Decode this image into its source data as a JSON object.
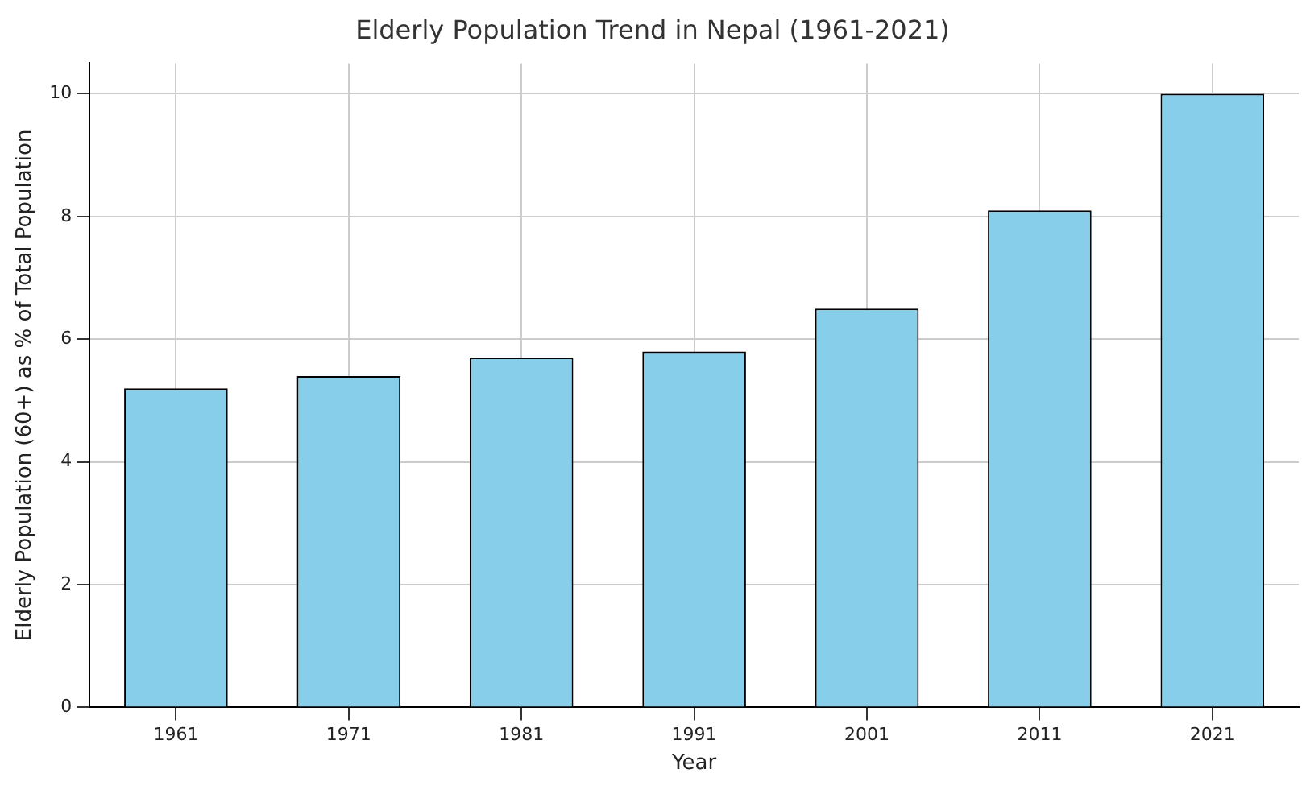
{
  "chart_data": {
    "type": "bar",
    "title": "Elderly Population Trend in Nepal (1961-2021)",
    "xlabel": "Year",
    "ylabel": "Elderly Population (60+) as % of Total Population",
    "categories": [
      "1961",
      "1971",
      "1981",
      "1991",
      "2001",
      "2011",
      "2021"
    ],
    "values": [
      5.2,
      5.4,
      5.7,
      5.8,
      6.5,
      8.1,
      10.0
    ],
    "color": "#87ceeb",
    "ylim": [
      0,
      10.5
    ],
    "yticks": [
      0,
      2,
      4,
      6,
      8,
      10
    ],
    "grid": true,
    "legend": false
  }
}
